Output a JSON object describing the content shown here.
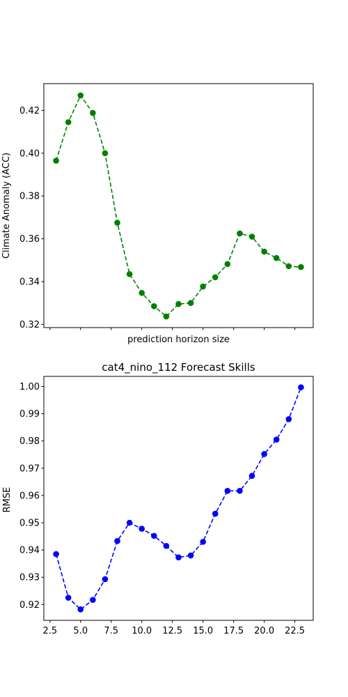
{
  "chart_data": [
    {
      "type": "line",
      "title": "",
      "xlabel": "prediction horizon size",
      "ylabel": "Climate Anomaly (ACC)",
      "color": "#008000",
      "linestyle": "dashed",
      "marker": "circle",
      "x": [
        3,
        4,
        5,
        6,
        7,
        8,
        9,
        10,
        11,
        12,
        13,
        14,
        15,
        16,
        17,
        18,
        19,
        20,
        21,
        22,
        23
      ],
      "y": [
        0.3965,
        0.4145,
        0.427,
        0.4188,
        0.4,
        0.3675,
        0.3435,
        0.3347,
        0.3285,
        0.3237,
        0.3295,
        0.33,
        0.3377,
        0.342,
        0.3482,
        0.3625,
        0.361,
        0.354,
        0.351,
        0.3472,
        0.3468
      ],
      "xlim": [
        2.0,
        24.0
      ],
      "ylim": [
        0.3185,
        0.4325
      ],
      "yticks": [
        0.32,
        0.34,
        0.36,
        0.38,
        0.4,
        0.42
      ],
      "ytick_labels": [
        "0.32",
        "0.34",
        "0.36",
        "0.38",
        "0.40",
        "0.42"
      ],
      "xticks": [
        2.5,
        5.0,
        7.5,
        10.0,
        12.5,
        15.0,
        17.5,
        20.0,
        22.5
      ],
      "xtick_labels_shown": false,
      "grid": false
    },
    {
      "type": "line",
      "title": "cat4_nino_112 Forecast Skills",
      "xlabel": "",
      "ylabel": "RMSE",
      "color": "#0000ff",
      "linestyle": "dashed",
      "marker": "circle",
      "x": [
        3,
        4,
        5,
        6,
        7,
        8,
        9,
        10,
        11,
        12,
        13,
        14,
        15,
        16,
        17,
        18,
        19,
        20,
        21,
        22,
        23
      ],
      "y": [
        0.9385,
        0.9225,
        0.9182,
        0.9217,
        0.9293,
        0.9433,
        0.95,
        0.9478,
        0.9452,
        0.9415,
        0.9373,
        0.938,
        0.943,
        0.9533,
        0.9617,
        0.9617,
        0.9672,
        0.9752,
        0.9805,
        0.988,
        0.9997
      ],
      "xlim": [
        2.0,
        24.0
      ],
      "ylim": [
        0.9142,
        1.0037
      ],
      "yticks": [
        0.92,
        0.93,
        0.94,
        0.95,
        0.96,
        0.97,
        0.98,
        0.99,
        1.0
      ],
      "ytick_labels": [
        "0.92",
        "0.93",
        "0.94",
        "0.95",
        "0.96",
        "0.97",
        "0.98",
        "0.99",
        "1.00"
      ],
      "xticks": [
        2.5,
        5.0,
        7.5,
        10.0,
        12.5,
        15.0,
        17.5,
        20.0,
        22.5
      ],
      "xtick_labels": [
        "2.5",
        "5.0",
        "7.5",
        "10.0",
        "12.5",
        "15.0",
        "17.5",
        "20.0",
        "22.5"
      ],
      "grid": false
    }
  ]
}
